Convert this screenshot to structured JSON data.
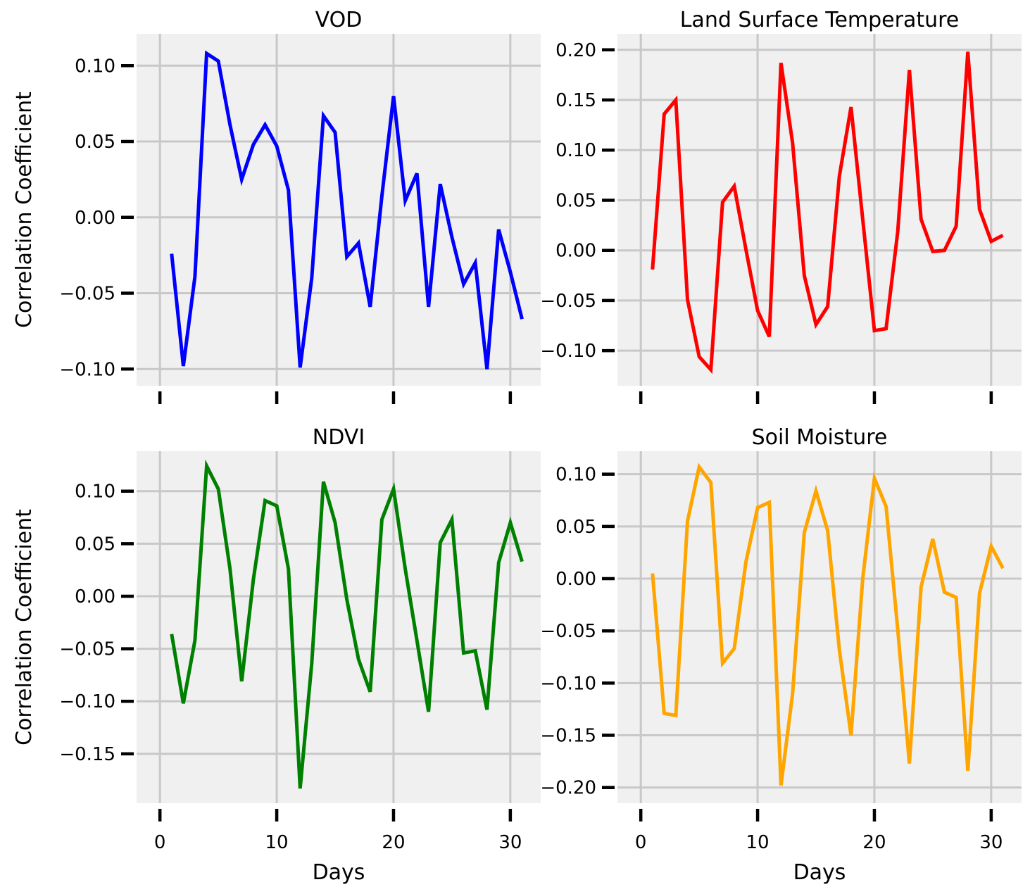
{
  "figure": {
    "background": "#ffffff",
    "plot_background": "#f0f0f0",
    "grid_color": "#c8c8c8"
  },
  "chart_data": [
    {
      "type": "line",
      "title": "VOD",
      "xlabel": "",
      "ylabel": "Correlation Coefficient",
      "xlim": [
        -2,
        32.6
      ],
      "ylim": [
        -0.111,
        0.121
      ],
      "xticks": [
        0,
        10,
        20,
        30
      ],
      "xtick_labels": [],
      "yticks": [
        -0.1,
        -0.05,
        0.0,
        0.05,
        0.1
      ],
      "ytick_labels": [
        "−0.10",
        "−0.05",
        "0.00",
        "0.05",
        "0.10"
      ],
      "grid": true,
      "color": "#0000ff",
      "series": [
        {
          "x": [
            1,
            2,
            3,
            4,
            5,
            6,
            7,
            8,
            9,
            10,
            11,
            12,
            13,
            14,
            15,
            16,
            17,
            18,
            19,
            20,
            21,
            22,
            23,
            24,
            25,
            26,
            27,
            28,
            29,
            30,
            31
          ],
          "y": [
            -0.024,
            -0.098,
            -0.039,
            0.108,
            0.103,
            0.061,
            0.025,
            0.048,
            0.061,
            0.047,
            0.018,
            -0.099,
            -0.04,
            0.067,
            0.056,
            -0.026,
            -0.017,
            -0.059,
            0.014,
            0.08,
            0.011,
            0.029,
            -0.059,
            0.022,
            -0.013,
            -0.044,
            -0.03,
            -0.1,
            -0.008,
            -0.036,
            -0.067
          ]
        }
      ]
    },
    {
      "type": "line",
      "title": "Land Surface Temperature",
      "xlabel": "",
      "ylabel": "",
      "xlim": [
        -2,
        32.6
      ],
      "ylim": [
        -0.135,
        0.216
      ],
      "xticks": [
        0,
        10,
        20,
        30
      ],
      "xtick_labels": [],
      "yticks": [
        -0.1,
        -0.05,
        0.0,
        0.05,
        0.1,
        0.15,
        0.2
      ],
      "ytick_labels": [
        "−0.10",
        "−0.05",
        "0.00",
        "0.05",
        "0.10",
        "0.15",
        "0.20"
      ],
      "grid": true,
      "color": "#ff0000",
      "series": [
        {
          "x": [
            1,
            2,
            3,
            4,
            5,
            6,
            7,
            8,
            9,
            10,
            11,
            12,
            13,
            14,
            15,
            16,
            17,
            18,
            19,
            20,
            21,
            22,
            23,
            24,
            25,
            26,
            27,
            28,
            29,
            30,
            31
          ],
          "y": [
            -0.019,
            0.136,
            0.15,
            -0.049,
            -0.106,
            -0.119,
            0.048,
            0.064,
            0.001,
            -0.06,
            -0.086,
            0.187,
            0.107,
            -0.025,
            -0.074,
            -0.056,
            0.074,
            0.143,
            0.031,
            -0.08,
            -0.078,
            0.019,
            0.18,
            0.031,
            -0.001,
            0.0,
            0.024,
            0.198,
            0.041,
            0.009,
            0.015
          ]
        }
      ]
    },
    {
      "type": "line",
      "title": "NDVI",
      "xlabel": "Days",
      "ylabel": "Correlation Coefficient",
      "xlim": [
        -2,
        32.6
      ],
      "ylim": [
        -0.197,
        0.138
      ],
      "xticks": [
        0,
        10,
        20,
        30
      ],
      "xtick_labels": [
        "0",
        "10",
        "20",
        "30"
      ],
      "yticks": [
        -0.15,
        -0.1,
        -0.05,
        0.0,
        0.05,
        0.1
      ],
      "ytick_labels": [
        "−0.15",
        "−0.10",
        "−0.05",
        "0.00",
        "0.05",
        "0.10"
      ],
      "grid": true,
      "color": "#008000",
      "series": [
        {
          "x": [
            1,
            2,
            3,
            4,
            5,
            6,
            7,
            8,
            9,
            10,
            11,
            12,
            13,
            14,
            15,
            16,
            17,
            18,
            19,
            20,
            21,
            22,
            23,
            24,
            25,
            26,
            27,
            28,
            29,
            30,
            31
          ],
          "y": [
            -0.036,
            -0.102,
            -0.042,
            0.124,
            0.102,
            0.026,
            -0.081,
            0.016,
            0.091,
            0.086,
            0.026,
            -0.183,
            -0.064,
            0.109,
            0.07,
            -0.003,
            -0.06,
            -0.091,
            0.073,
            0.102,
            0.026,
            -0.042,
            -0.11,
            0.051,
            0.073,
            -0.054,
            -0.052,
            -0.108,
            0.032,
            0.07,
            0.033
          ]
        }
      ]
    },
    {
      "type": "line",
      "title": "Soil Moisture",
      "xlabel": "Days",
      "ylabel": "",
      "xlim": [
        -2,
        32.6
      ],
      "ylim": [
        -0.215,
        0.122
      ],
      "xticks": [
        0,
        10,
        20,
        30
      ],
      "xtick_labels": [
        "0",
        "10",
        "20",
        "30"
      ],
      "yticks": [
        -0.2,
        -0.15,
        -0.1,
        -0.05,
        0.0,
        0.05,
        0.1
      ],
      "ytick_labels": [
        "−0.20",
        "−0.15",
        "−0.10",
        "−0.05",
        "0.00",
        "0.05",
        "0.10"
      ],
      "grid": true,
      "color": "#ffa500",
      "series": [
        {
          "x": [
            1,
            2,
            3,
            4,
            5,
            6,
            7,
            8,
            9,
            10,
            11,
            12,
            13,
            14,
            15,
            16,
            17,
            18,
            19,
            20,
            21,
            22,
            23,
            24,
            25,
            26,
            27,
            28,
            29,
            30,
            31
          ],
          "y": [
            0.005,
            -0.129,
            -0.131,
            0.055,
            0.107,
            0.092,
            -0.081,
            -0.067,
            0.016,
            0.068,
            0.073,
            -0.198,
            -0.11,
            0.044,
            0.084,
            0.046,
            -0.068,
            -0.15,
            0.0,
            0.096,
            0.069,
            -0.049,
            -0.177,
            -0.008,
            0.038,
            -0.013,
            -0.018,
            -0.184,
            -0.014,
            0.031,
            0.01
          ]
        }
      ]
    }
  ]
}
